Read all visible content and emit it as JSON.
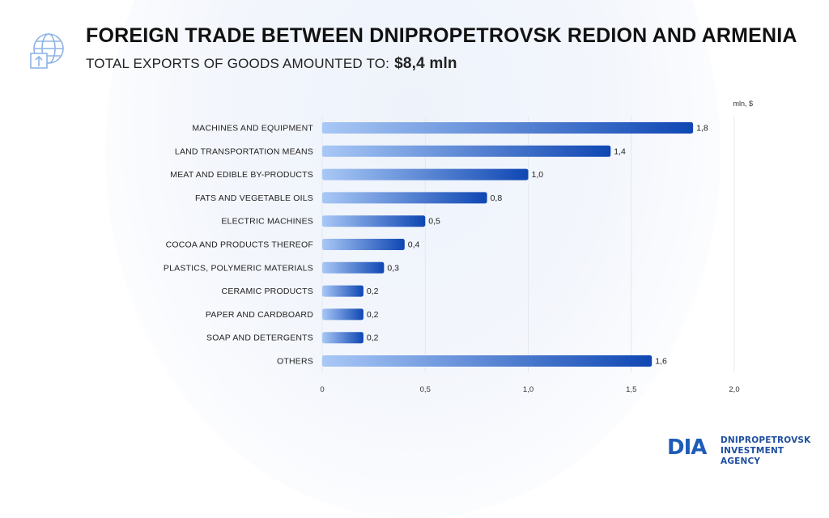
{
  "header": {
    "title": "FOREIGN TRADE BETWEEN DNIPROPETROVSK REDION AND ARMENIA",
    "subtitle_label": "TOTAL EXPORTS OF GOODS AMOUNTED TO:",
    "subtitle_value": "$8,4 mln",
    "icon": "globe-export-icon"
  },
  "chart_data": {
    "type": "bar",
    "orientation": "horizontal",
    "unit_label": "mln, $",
    "categories": [
      "MACHINES AND EQUIPMENT",
      "LAND TRANSPORTATION MEANS",
      "MEAT AND EDIBLE BY-PRODUCTS",
      "FATS AND VEGETABLE OILS",
      "ELECTRIC MACHINES",
      "COCOA AND PRODUCTS THEREOF",
      "PLASTICS, POLYMERIC MATERIALS",
      "CERAMIC PRODUCTS",
      "PAPER AND CARDBOARD",
      "SOAP AND DETERGENTS",
      "OTHERS"
    ],
    "values": [
      1.8,
      1.4,
      1.0,
      0.8,
      0.5,
      0.4,
      0.3,
      0.2,
      0.2,
      0.2,
      1.6
    ],
    "data_labels": [
      "1,8",
      "1,4",
      "1,0",
      "0,8",
      "0,5",
      "0,4",
      "0,3",
      "0,2",
      "0,2",
      "0,2",
      "1,6"
    ],
    "x_ticks": [
      0,
      0.5,
      1.0,
      1.5,
      2.0
    ],
    "x_tick_labels": [
      "0",
      "0,5",
      "1,0",
      "1,5",
      "2,0"
    ],
    "xlim": [
      0,
      2.0
    ],
    "grid": "vertical",
    "colors": {
      "bar_start": "#a9c8f6",
      "bar_end": "#0f47b3",
      "grid": "#e4e8ef"
    }
  },
  "logo": {
    "mark": "DIA",
    "line1": "DNIPROPETROVSK",
    "line2": "INVESTMENT AGENCY",
    "colors": {
      "primary": "#1f5cb8",
      "accent": "#f2c230"
    }
  }
}
